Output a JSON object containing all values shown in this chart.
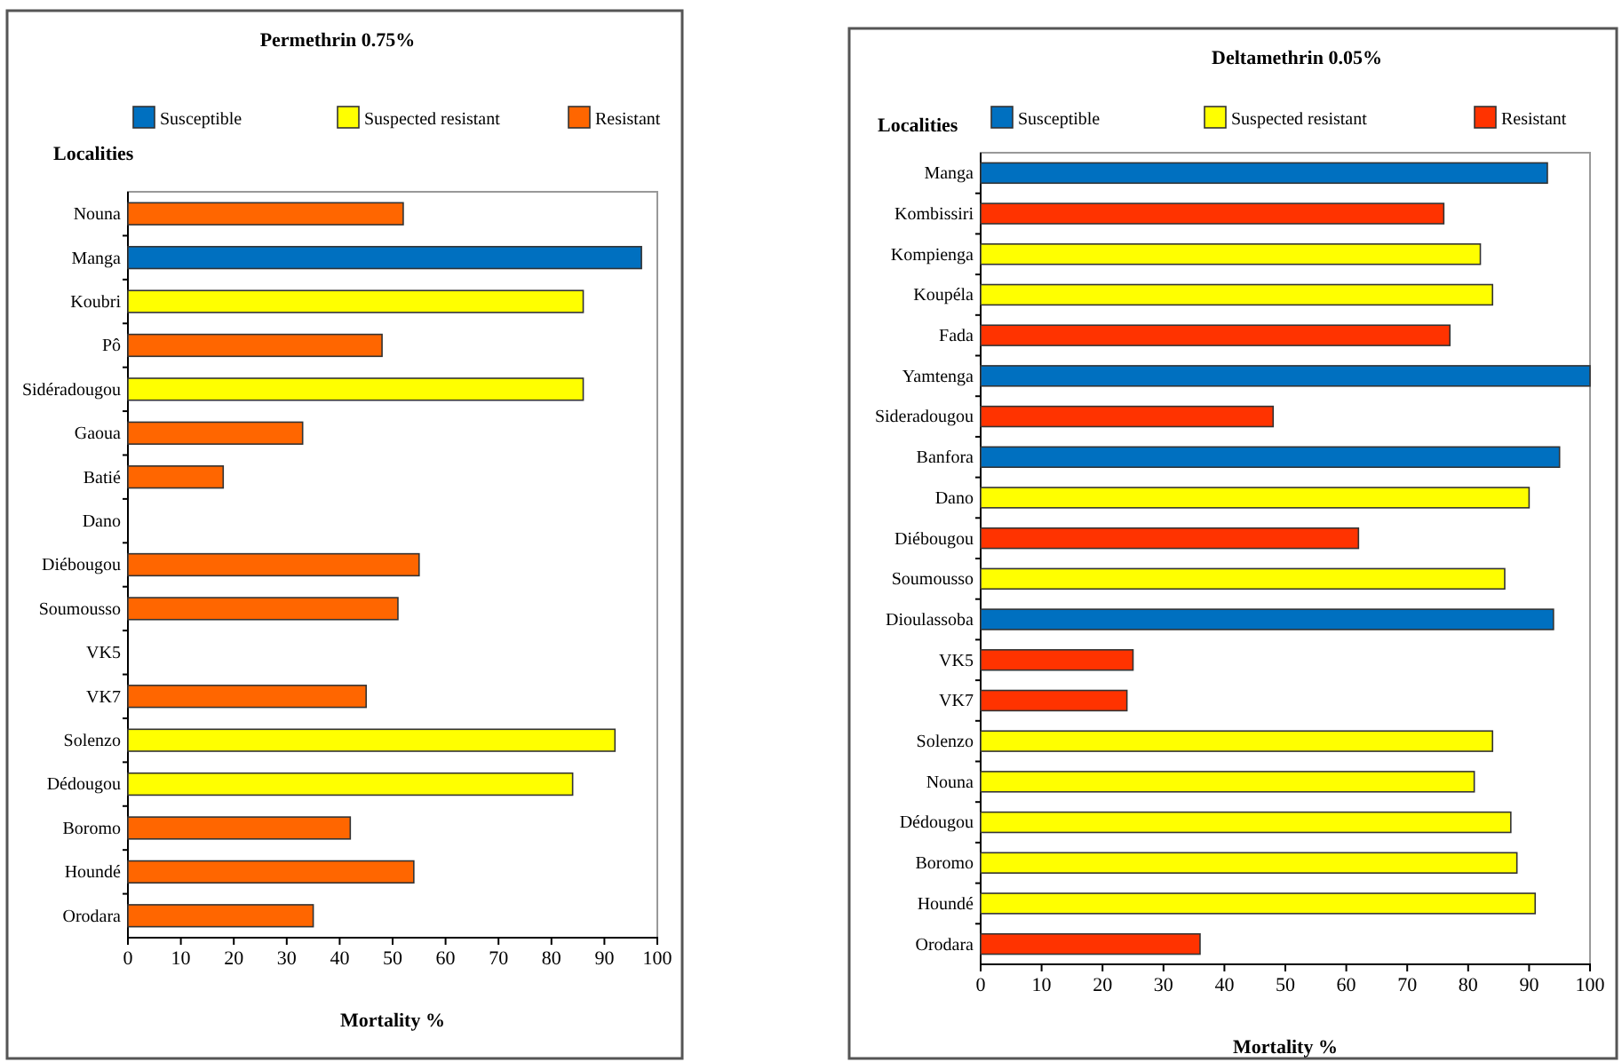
{
  "chart_data": [
    {
      "type": "bar",
      "orientation": "horizontal",
      "title": "Permethrin 0.75%",
      "ylabel": "Localities",
      "xlabel": "Mortality %",
      "legend": "top",
      "categories": [
        "Nouna",
        "Manga",
        "Koubri",
        "Pô",
        "Sidéradougou",
        "Gaoua",
        "Batié",
        "Dano",
        "Diébougou",
        "Soumousso",
        "VK5",
        "VK7",
        "Solenzo",
        "Dédougou",
        "Boromo",
        "Houndé",
        "Orodara"
      ],
      "series": [
        {
          "name": "Susceptible",
          "color": "#0070c0",
          "values": [
            null,
            97,
            null,
            null,
            null,
            null,
            null,
            null,
            null,
            null,
            null,
            null,
            null,
            null,
            null,
            null,
            null
          ]
        },
        {
          "name": "Suspected resistant",
          "color": "#ffff00",
          "values": [
            null,
            null,
            86,
            null,
            86,
            null,
            null,
            null,
            null,
            null,
            null,
            null,
            92,
            84,
            null,
            null,
            null
          ]
        },
        {
          "name": "Resistant",
          "color": "#ff6600",
          "values": [
            52,
            null,
            null,
            48,
            null,
            33,
            18,
            null,
            55,
            51,
            null,
            45,
            null,
            null,
            42,
            54,
            35
          ]
        }
      ],
      "xlim": [
        0,
        100
      ],
      "xticks": [
        0,
        10,
        20,
        30,
        40,
        50,
        60,
        70,
        80,
        90,
        100
      ]
    },
    {
      "type": "bar",
      "orientation": "horizontal",
      "title": "Deltamethrin 0.05%",
      "ylabel": "Localities",
      "xlabel": "Mortality %",
      "legend": "top",
      "categories": [
        "Manga",
        "Kombissiri",
        "Kompienga",
        "Koupéla",
        "Fada",
        "Yamtenga",
        "Sideradougou",
        "Banfora",
        "Dano",
        "Diébougou",
        "Soumousso",
        "Dioulassoba",
        "VK5",
        "VK7",
        "Solenzo",
        "Nouna",
        "Dédougou",
        "Boromo",
        "Houndé",
        "Orodara"
      ],
      "series": [
        {
          "name": "Susceptible",
          "color": "#0070c0",
          "values": [
            93,
            null,
            null,
            null,
            null,
            100,
            null,
            95,
            null,
            null,
            null,
            94,
            null,
            null,
            null,
            null,
            null,
            null,
            null,
            null
          ]
        },
        {
          "name": "Suspected resistant",
          "color": "#ffff00",
          "values": [
            null,
            null,
            82,
            84,
            null,
            null,
            null,
            null,
            90,
            null,
            86,
            null,
            null,
            null,
            84,
            81,
            87,
            88,
            91,
            null
          ]
        },
        {
          "name": "Resistant",
          "color": "#ff3300",
          "values": [
            null,
            76,
            null,
            null,
            77,
            null,
            48,
            null,
            null,
            62,
            null,
            null,
            25,
            24,
            null,
            null,
            null,
            null,
            null,
            36
          ]
        }
      ],
      "xlim": [
        0,
        100
      ],
      "xticks": [
        0,
        10,
        20,
        30,
        40,
        50,
        60,
        70,
        80,
        90,
        100
      ]
    }
  ]
}
